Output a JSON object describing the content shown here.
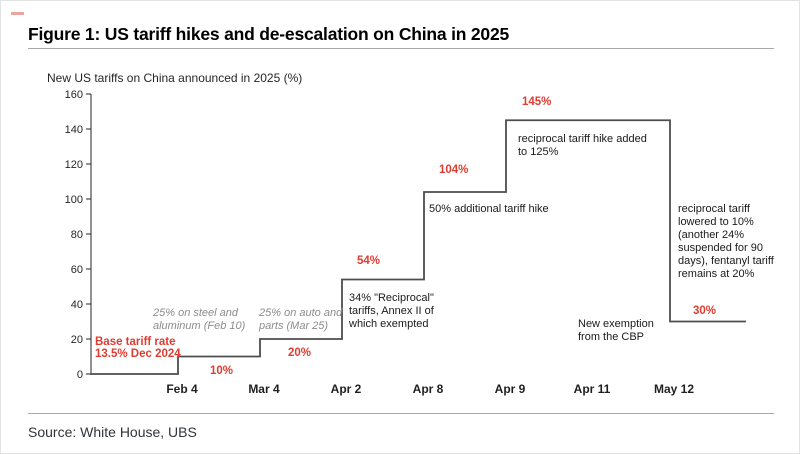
{
  "page": {
    "title": "Figure 1: US tariff hikes and de-escalation on China in 2025",
    "source": "Source: White House, UBS",
    "accent_red": "#e03c31"
  },
  "chart_data": {
    "type": "line",
    "subtype": "step",
    "title": "New US tariffs on China announced in 2025 (%)",
    "xlabel": "",
    "ylabel": "New US tariffs on China announced in 2025 (%)",
    "ylim": [
      0,
      160
    ],
    "y_ticks": [
      0,
      20,
      40,
      60,
      80,
      100,
      120,
      140,
      160
    ],
    "grid": false,
    "legend": false,
    "line_color": "#4d4d4d",
    "categories": [
      "Feb 4",
      "Mar 4",
      "Apr 2",
      "Apr 8",
      "Apr 9",
      "Apr 11",
      "May 12"
    ],
    "start_value": 0,
    "values": [
      10,
      20,
      54,
      104,
      145,
      145,
      30
    ],
    "value_labels": {
      "pct10": "10%",
      "pct20": "20%",
      "pct54": "54%",
      "pct104": "104%",
      "pct145": "145%",
      "pct30": "30%"
    },
    "annotations": {
      "base_rate": "Base tariff rate\n13.5% Dec 2024",
      "steel": "25% on steel and\naluminum (Feb 10)",
      "auto": "25% on auto and\nparts (Mar 25)",
      "reciprocal34": "34% \"Reciprocal\"\ntariffs, Annex II of\nwhich exempted",
      "additional50": "50% additional tariff hike",
      "hike125": "reciprocal tariff hike added\nto 125%",
      "cbp": "New exemption\nfrom the CBP",
      "lowered": "reciprocal tariff\nlowered to 10%\n(another 24%\nsuspended for 90\ndays), fentanyl tariff\nremains at 20%"
    }
  }
}
